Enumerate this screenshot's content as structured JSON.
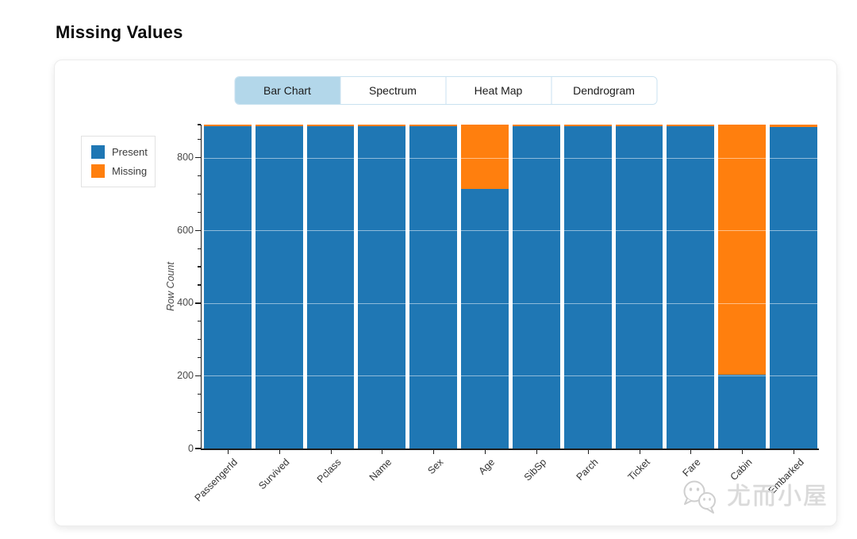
{
  "page_title": "Missing Values",
  "tabs": [
    {
      "label": "Bar Chart",
      "selected": true
    },
    {
      "label": "Spectrum",
      "selected": false
    },
    {
      "label": "Heat Map",
      "selected": false
    },
    {
      "label": "Dendrogram",
      "selected": false
    }
  ],
  "legend": {
    "items": [
      {
        "label": "Present",
        "color": "#1f77b4"
      },
      {
        "label": "Missing",
        "color": "#ff7f0e"
      }
    ]
  },
  "watermark": {
    "text": "尤而小屋",
    "icon": "chat-bubbles-logo"
  },
  "colors": {
    "present": "#1f77b4",
    "missing": "#ff7f0e",
    "tab_selected_bg": "#b3d7ea",
    "tab_border": "#c9e2f0",
    "axis": "#1c1c1c",
    "tick_label": "#4a4a4a"
  },
  "chart_data": {
    "type": "bar",
    "stacked": true,
    "title": "Missing Values",
    "xlabel": "",
    "ylabel": "Row Count",
    "categories": [
      "PassengerId",
      "Survived",
      "Pclass",
      "Name",
      "Sex",
      "Age",
      "SibSp",
      "Parch",
      "Ticket",
      "Fare",
      "Cabin",
      "Embarked"
    ],
    "series": [
      {
        "name": "Present",
        "color": "#1f77b4",
        "values": [
          891,
          891,
          891,
          891,
          891,
          714,
          891,
          891,
          891,
          891,
          204,
          889
        ]
      },
      {
        "name": "Missing",
        "color": "#ff7f0e",
        "values": [
          0,
          0,
          0,
          0,
          0,
          177,
          0,
          0,
          0,
          0,
          687,
          2
        ]
      }
    ],
    "ylim": [
      0,
      891
    ],
    "yticks": [
      0,
      200,
      400,
      600,
      800
    ],
    "minor_tick_step": 50,
    "grid": true,
    "legend_position": "upper left",
    "x_label_rotation_deg": 45
  }
}
